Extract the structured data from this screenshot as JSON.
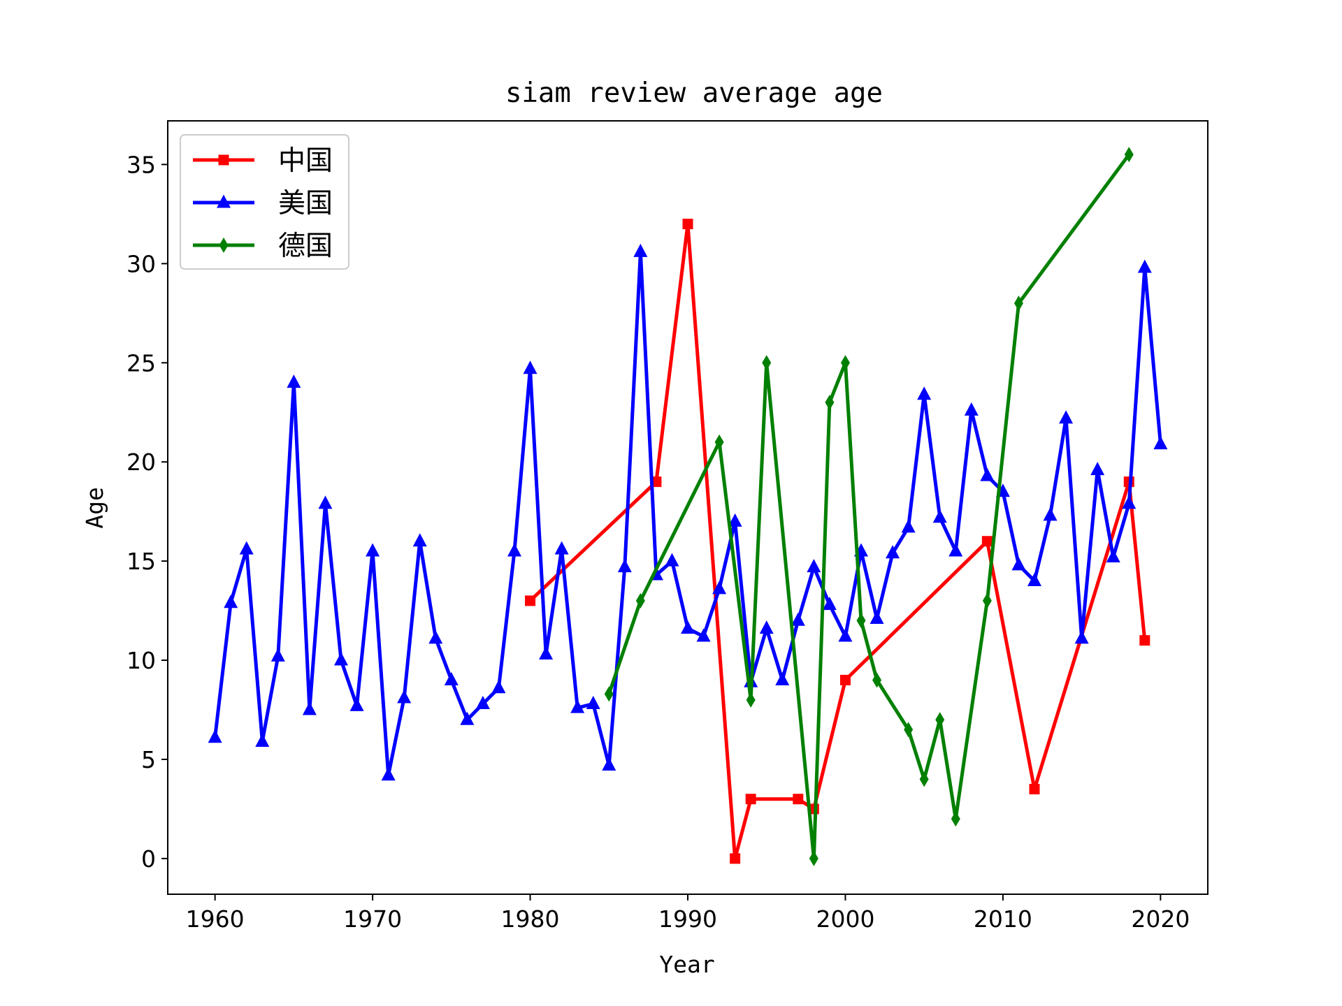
{
  "chart_data": {
    "type": "line",
    "title": "siam review average age",
    "xlabel": "Year",
    "ylabel": "Age",
    "xlim": [
      1957,
      2023
    ],
    "ylim": [
      -1.8,
      37.2
    ],
    "xticks": [
      1960,
      1970,
      1980,
      1990,
      2000,
      2010,
      2020
    ],
    "yticks": [
      0,
      5,
      10,
      15,
      20,
      25,
      30,
      35
    ],
    "grid": false,
    "legend_position": "top-left",
    "series": [
      {
        "name": "中国",
        "color": "#ff0000",
        "marker": "square",
        "x": [
          1980,
          1988,
          1990,
          1993,
          1994,
          1997,
          1998,
          2000,
          2009,
          2012,
          2018,
          2019
        ],
        "y": [
          13,
          19,
          32,
          0,
          3,
          3,
          2.5,
          9,
          16,
          3.5,
          19,
          11
        ]
      },
      {
        "name": "美国",
        "color": "#0000ff",
        "marker": "triangle-up",
        "x": [
          1960,
          1961,
          1962,
          1963,
          1964,
          1965,
          1966,
          1967,
          1968,
          1969,
          1970,
          1971,
          1972,
          1973,
          1974,
          1975,
          1976,
          1977,
          1978,
          1979,
          1980,
          1981,
          1982,
          1983,
          1984,
          1985,
          1986,
          1987,
          1988,
          1989,
          1990,
          1991,
          1992,
          1993,
          1994,
          1995,
          1996,
          1997,
          1998,
          1999,
          2000,
          2001,
          2002,
          2003,
          2004,
          2005,
          2006,
          2007,
          2008,
          2009,
          2010,
          2011,
          2012,
          2013,
          2014,
          2015,
          2016,
          2017,
          2018,
          2019,
          2020
        ],
        "y": [
          6.1,
          12.9,
          15.6,
          5.9,
          10.2,
          24,
          7.5,
          17.9,
          10,
          7.7,
          15.5,
          4.2,
          8.1,
          16,
          11.1,
          9,
          7,
          7.8,
          8.6,
          15.5,
          24.7,
          10.3,
          15.6,
          7.6,
          7.8,
          4.7,
          14.7,
          30.6,
          14.3,
          15,
          11.6,
          11.2,
          13.6,
          17,
          8.9,
          11.6,
          9,
          12,
          14.7,
          12.8,
          11.2,
          15.5,
          12.1,
          15.4,
          16.7,
          23.4,
          17.2,
          15.5,
          22.6,
          19.3,
          18.5,
          14.8,
          14,
          17.3,
          22.2,
          11.1,
          19.6,
          15.2,
          17.9,
          29.8,
          20.9
        ]
      },
      {
        "name": "德国",
        "color": "#008000",
        "marker": "thin-diamond",
        "x": [
          1985,
          1987,
          1992,
          1994,
          1995,
          1998,
          1999,
          2000,
          2001,
          2002,
          2004,
          2005,
          2006,
          2007,
          2009,
          2011,
          2018
        ],
        "y": [
          8.3,
          13,
          21,
          8,
          25,
          0,
          23,
          25,
          12,
          9,
          6.5,
          4,
          7,
          2,
          13,
          28,
          35.5
        ]
      }
    ]
  }
}
